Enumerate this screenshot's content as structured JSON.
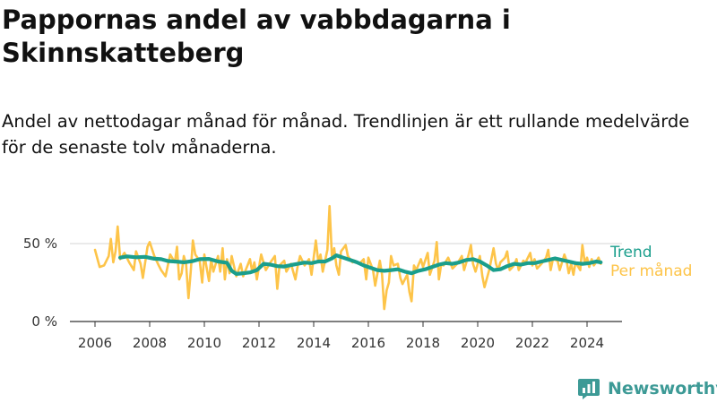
{
  "header": {
    "title": "Pappornas andel av vabbdagarna i Skinnskatteberg",
    "subtitle": "Andel av nettodagar månad för månad. Trendlinjen är ett rullande medelvärde för de senaste tolv månaderna."
  },
  "brand": {
    "name": "Newsworthy",
    "icon": "newsworthy-logo-icon",
    "color": "#3d9a96"
  },
  "chart_data": {
    "type": "line",
    "x_unit": "year (decimal)",
    "y_unit": "percent",
    "ylim": [
      0,
      70
    ],
    "y_ticks": [
      0,
      50
    ],
    "y_tick_labels": [
      "0 %",
      "50 %"
    ],
    "xlim": [
      2005.6,
      2025.2
    ],
    "x_ticks": [
      2006,
      2008,
      2010,
      2012,
      2014,
      2016,
      2018,
      2020,
      2022,
      2024
    ],
    "x_tick_labels": [
      "2006",
      "2008",
      "2010",
      "2012",
      "2014",
      "2016",
      "2018",
      "2020",
      "2022",
      "2024"
    ],
    "grid": {
      "y": true,
      "x": false
    },
    "legend_placement": "right-end",
    "series": [
      {
        "name": "Per månad",
        "color": "#fdc449",
        "points": [
          [
            2006.0,
            46
          ],
          [
            2006.17,
            35
          ],
          [
            2006.33,
            36
          ],
          [
            2006.5,
            42
          ],
          [
            2006.58,
            53
          ],
          [
            2006.67,
            38
          ],
          [
            2006.75,
            45
          ],
          [
            2006.83,
            61
          ],
          [
            2006.92,
            40
          ],
          [
            2007.08,
            44
          ],
          [
            2007.25,
            38
          ],
          [
            2007.42,
            33
          ],
          [
            2007.5,
            45
          ],
          [
            2007.67,
            37
          ],
          [
            2007.75,
            28
          ],
          [
            2007.92,
            48
          ],
          [
            2008.0,
            51
          ],
          [
            2008.17,
            42
          ],
          [
            2008.33,
            36
          ],
          [
            2008.42,
            33
          ],
          [
            2008.58,
            29
          ],
          [
            2008.75,
            43
          ],
          [
            2008.92,
            38
          ],
          [
            2009.0,
            48
          ],
          [
            2009.08,
            27
          ],
          [
            2009.17,
            31
          ],
          [
            2009.25,
            42
          ],
          [
            2009.33,
            37
          ],
          [
            2009.42,
            15
          ],
          [
            2009.5,
            32
          ],
          [
            2009.58,
            52
          ],
          [
            2009.67,
            43
          ],
          [
            2009.83,
            39
          ],
          [
            2009.92,
            25
          ],
          [
            2010.0,
            43
          ],
          [
            2010.08,
            35
          ],
          [
            2010.17,
            26
          ],
          [
            2010.25,
            40
          ],
          [
            2010.33,
            32
          ],
          [
            2010.5,
            42
          ],
          [
            2010.58,
            32
          ],
          [
            2010.67,
            47
          ],
          [
            2010.75,
            27
          ],
          [
            2010.83,
            40
          ],
          [
            2010.92,
            31
          ],
          [
            2011.0,
            42
          ],
          [
            2011.17,
            29
          ],
          [
            2011.33,
            37
          ],
          [
            2011.42,
            29
          ],
          [
            2011.58,
            36
          ],
          [
            2011.67,
            40
          ],
          [
            2011.75,
            32
          ],
          [
            2011.83,
            38
          ],
          [
            2011.92,
            27
          ],
          [
            2012.08,
            43
          ],
          [
            2012.25,
            33
          ],
          [
            2012.42,
            38
          ],
          [
            2012.58,
            42
          ],
          [
            2012.67,
            21
          ],
          [
            2012.75,
            36
          ],
          [
            2012.92,
            39
          ],
          [
            2013.0,
            32
          ],
          [
            2013.17,
            37
          ],
          [
            2013.33,
            27
          ],
          [
            2013.42,
            36
          ],
          [
            2013.5,
            42
          ],
          [
            2013.67,
            36
          ],
          [
            2013.83,
            40
          ],
          [
            2013.92,
            30
          ],
          [
            2014.08,
            52
          ],
          [
            2014.17,
            38
          ],
          [
            2014.25,
            43
          ],
          [
            2014.33,
            32
          ],
          [
            2014.5,
            46
          ],
          [
            2014.58,
            74
          ],
          [
            2014.67,
            41
          ],
          [
            2014.75,
            47
          ],
          [
            2014.83,
            36
          ],
          [
            2014.92,
            30
          ],
          [
            2015.0,
            45
          ],
          [
            2015.17,
            49
          ],
          [
            2015.25,
            42
          ],
          [
            2015.42,
            38
          ],
          [
            2015.5,
            39
          ],
          [
            2015.67,
            37
          ],
          [
            2015.83,
            40
          ],
          [
            2015.92,
            27
          ],
          [
            2016.0,
            41
          ],
          [
            2016.17,
            33
          ],
          [
            2016.25,
            23
          ],
          [
            2016.42,
            39
          ],
          [
            2016.5,
            30
          ],
          [
            2016.58,
            8
          ],
          [
            2016.67,
            20
          ],
          [
            2016.75,
            25
          ],
          [
            2016.83,
            42
          ],
          [
            2016.92,
            36
          ],
          [
            2017.08,
            37
          ],
          [
            2017.17,
            28
          ],
          [
            2017.25,
            24
          ],
          [
            2017.42,
            30
          ],
          [
            2017.5,
            19
          ],
          [
            2017.58,
            13
          ],
          [
            2017.67,
            36
          ],
          [
            2017.75,
            33
          ],
          [
            2017.92,
            40
          ],
          [
            2018.0,
            35
          ],
          [
            2018.17,
            44
          ],
          [
            2018.25,
            30
          ],
          [
            2018.42,
            39
          ],
          [
            2018.5,
            51
          ],
          [
            2018.58,
            27
          ],
          [
            2018.67,
            37
          ],
          [
            2018.75,
            36
          ],
          [
            2018.92,
            41
          ],
          [
            2019.08,
            34
          ],
          [
            2019.25,
            37
          ],
          [
            2019.42,
            42
          ],
          [
            2019.5,
            33
          ],
          [
            2019.67,
            43
          ],
          [
            2019.75,
            49
          ],
          [
            2019.83,
            37
          ],
          [
            2019.92,
            32
          ],
          [
            2020.08,
            42
          ],
          [
            2020.17,
            29
          ],
          [
            2020.25,
            22
          ],
          [
            2020.42,
            33
          ],
          [
            2020.58,
            47
          ],
          [
            2020.67,
            37
          ],
          [
            2020.75,
            33
          ],
          [
            2020.83,
            38
          ],
          [
            2021.0,
            41
          ],
          [
            2021.08,
            45
          ],
          [
            2021.17,
            33
          ],
          [
            2021.33,
            36
          ],
          [
            2021.42,
            40
          ],
          [
            2021.5,
            33
          ],
          [
            2021.67,
            39
          ],
          [
            2021.75,
            38
          ],
          [
            2021.92,
            44
          ],
          [
            2022.0,
            36
          ],
          [
            2022.08,
            40
          ],
          [
            2022.17,
            34
          ],
          [
            2022.33,
            37
          ],
          [
            2022.5,
            41
          ],
          [
            2022.58,
            46
          ],
          [
            2022.67,
            33
          ],
          [
            2022.75,
            40
          ],
          [
            2022.92,
            39
          ],
          [
            2023.0,
            33
          ],
          [
            2023.17,
            43
          ],
          [
            2023.25,
            39
          ],
          [
            2023.33,
            31
          ],
          [
            2023.42,
            37
          ],
          [
            2023.5,
            30
          ],
          [
            2023.58,
            38
          ],
          [
            2023.75,
            33
          ],
          [
            2023.83,
            49
          ],
          [
            2023.92,
            37
          ],
          [
            2024.0,
            41
          ],
          [
            2024.08,
            35
          ],
          [
            2024.17,
            40
          ],
          [
            2024.25,
            36
          ],
          [
            2024.33,
            38
          ],
          [
            2024.42,
            41
          ],
          [
            2024.5,
            37
          ]
        ]
      },
      {
        "name": "Trend",
        "color": "#1a9e8c",
        "points": [
          [
            2006.92,
            41
          ],
          [
            2007.17,
            41.8
          ],
          [
            2007.5,
            41.2
          ],
          [
            2007.83,
            41.5
          ],
          [
            2008.17,
            40.3
          ],
          [
            2008.42,
            40
          ],
          [
            2008.67,
            38.8
          ],
          [
            2008.92,
            38.5
          ],
          [
            2009.25,
            38
          ],
          [
            2009.58,
            38.8
          ],
          [
            2009.83,
            40
          ],
          [
            2010.17,
            40.2
          ],
          [
            2010.5,
            38.5
          ],
          [
            2010.83,
            37.7
          ],
          [
            2011.0,
            32.5
          ],
          [
            2011.17,
            30.5
          ],
          [
            2011.42,
            31
          ],
          [
            2011.67,
            31.5
          ],
          [
            2011.92,
            33
          ],
          [
            2012.17,
            37
          ],
          [
            2012.42,
            36.5
          ],
          [
            2012.67,
            35.5
          ],
          [
            2012.92,
            35.3
          ],
          [
            2013.17,
            36.2
          ],
          [
            2013.42,
            37
          ],
          [
            2013.67,
            37.8
          ],
          [
            2013.92,
            37.5
          ],
          [
            2014.17,
            38.5
          ],
          [
            2014.42,
            38.5
          ],
          [
            2014.67,
            40.5
          ],
          [
            2014.83,
            42.5
          ],
          [
            2015.08,
            41
          ],
          [
            2015.33,
            39.5
          ],
          [
            2015.58,
            38
          ],
          [
            2015.83,
            36
          ],
          [
            2016.08,
            34.5
          ],
          [
            2016.33,
            33
          ],
          [
            2016.58,
            32.5
          ],
          [
            2016.83,
            33
          ],
          [
            2017.08,
            33.5
          ],
          [
            2017.33,
            32
          ],
          [
            2017.58,
            31
          ],
          [
            2017.83,
            32.5
          ],
          [
            2018.08,
            33.5
          ],
          [
            2018.33,
            35
          ],
          [
            2018.58,
            36.5
          ],
          [
            2018.83,
            37.5
          ],
          [
            2019.08,
            37
          ],
          [
            2019.33,
            38
          ],
          [
            2019.58,
            39.5
          ],
          [
            2019.83,
            40
          ],
          [
            2020.08,
            38.5
          ],
          [
            2020.33,
            36
          ],
          [
            2020.58,
            33
          ],
          [
            2020.83,
            33.5
          ],
          [
            2021.08,
            35.5
          ],
          [
            2021.33,
            37
          ],
          [
            2021.58,
            36.5
          ],
          [
            2021.83,
            37.5
          ],
          [
            2022.08,
            37.5
          ],
          [
            2022.33,
            38.5
          ],
          [
            2022.58,
            39.5
          ],
          [
            2022.83,
            40.5
          ],
          [
            2023.08,
            39.5
          ],
          [
            2023.33,
            38.5
          ],
          [
            2023.58,
            37.5
          ],
          [
            2023.83,
            37
          ],
          [
            2024.08,
            37.5
          ],
          [
            2024.33,
            38.5
          ],
          [
            2024.5,
            38
          ]
        ]
      }
    ]
  }
}
